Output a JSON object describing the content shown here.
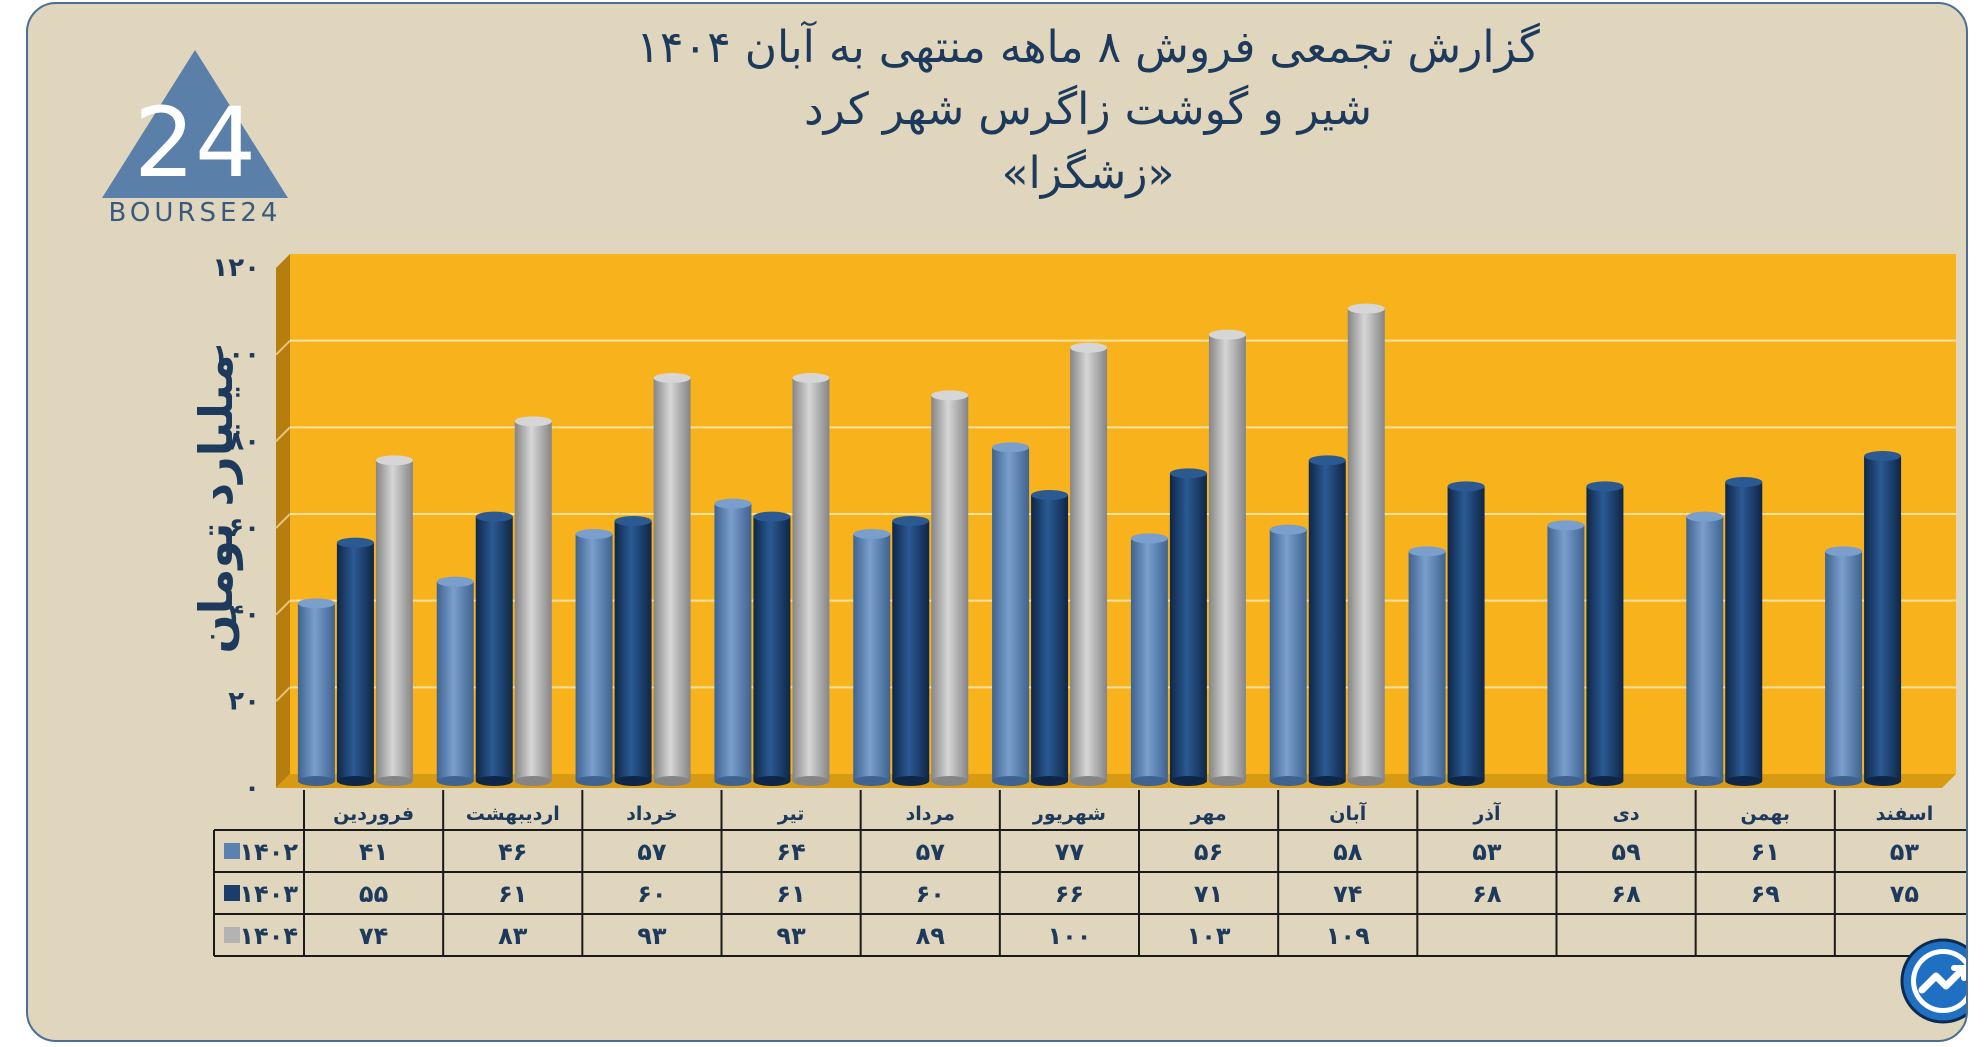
{
  "title": {
    "line1": "گزارش تجمعی فروش ۸ ماهه منتهی به آبان ۱۴۰۴",
    "line2": "شیر و گوشت زاگرس شهر کرد",
    "line3": "«زشگزا»"
  },
  "logo": {
    "text": "BOURSE24",
    "mark": "24"
  },
  "badge_icon": "trend-arrow-icon",
  "chart_data": {
    "type": "bar",
    "title": "گزارش تجمعی فروش ۸ ماهه منتهی به آبان ۱۴۰۴",
    "ylabel": "میلیارد تومان",
    "xlabel": "",
    "ylim": [
      0,
      120
    ],
    "yticks": [
      0,
      20,
      40,
      60,
      80,
      100,
      120
    ],
    "ytick_labels": [
      "۰",
      "۲۰",
      "۴۰",
      "۶۰",
      "۸۰",
      "۱۰۰",
      "۱۲۰"
    ],
    "categories": [
      "فروردین",
      "اردیبهشت",
      "خرداد",
      "تیر",
      "مرداد",
      "شهریور",
      "مهر",
      "آبان",
      "آذر",
      "دی",
      "بهمن",
      "اسفند"
    ],
    "series": [
      {
        "name": "۱۴۰۲",
        "color": "#5b81b0",
        "values": [
          41,
          46,
          57,
          64,
          57,
          77,
          56,
          58,
          53,
          59,
          61,
          53
        ],
        "labels": [
          "۴۱",
          "۴۶",
          "۵۷",
          "۶۴",
          "۵۷",
          "۷۷",
          "۵۶",
          "۵۸",
          "۵۳",
          "۵۹",
          "۶۱",
          "۵۳"
        ]
      },
      {
        "name": "۱۴۰۳",
        "color": "#1b3d6b",
        "values": [
          55,
          61,
          60,
          61,
          60,
          66,
          71,
          74,
          68,
          68,
          69,
          75
        ],
        "labels": [
          "۵۵",
          "۶۱",
          "۶۰",
          "۶۱",
          "۶۰",
          "۶۶",
          "۷۱",
          "۷۴",
          "۶۸",
          "۶۸",
          "۶۹",
          "۷۵"
        ]
      },
      {
        "name": "۱۴۰۴",
        "color": "#b3b3b3",
        "values": [
          74,
          83,
          93,
          93,
          89,
          100,
          103,
          109,
          null,
          null,
          null,
          null
        ],
        "labels": [
          "۷۴",
          "۸۳",
          "۹۳",
          "۹۳",
          "۸۹",
          "۱۰۰",
          "۱۰۳",
          "۱۰۹",
          "",
          "",
          "",
          ""
        ]
      }
    ],
    "grid": true,
    "legend": "data-table"
  }
}
